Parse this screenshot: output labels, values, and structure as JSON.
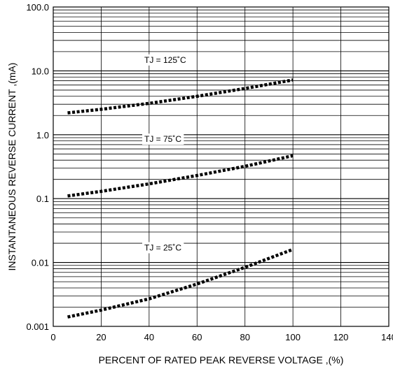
{
  "chart_data": {
    "type": "line",
    "title": "",
    "xlabel": "PERCENT OF RATED PEAK REVERSE VOLTAGE ,(%)",
    "ylabel": "INSTANTANEOUS REVERSE CURRENT ,(mA)",
    "x_scale": "linear",
    "y_scale": "log",
    "xlim": [
      0,
      140
    ],
    "ylim": [
      0.001,
      100
    ],
    "x_ticks": [
      0,
      20,
      40,
      60,
      80,
      100,
      120,
      140
    ],
    "x_tick_labels": [
      "0",
      "20",
      "40",
      "60",
      "80",
      "100",
      "120",
      "140"
    ],
    "y_ticks": [
      0.001,
      0.01,
      0.1,
      1,
      10,
      100
    ],
    "y_tick_labels": [
      "0.001",
      "0.01",
      "0.1",
      "1.0",
      "10.0",
      "100.0"
    ],
    "grid": true,
    "line_style": "dotted",
    "line_color": "#000000",
    "series": [
      {
        "name": "TJ = 125˚C",
        "x": [
          6,
          20,
          40,
          60,
          80,
          100
        ],
        "y": [
          2.2,
          2.5,
          3.1,
          4.0,
          5.3,
          7.2
        ]
      },
      {
        "name": "TJ = 75˚C",
        "x": [
          6,
          20,
          40,
          60,
          80,
          100
        ],
        "y": [
          0.11,
          0.13,
          0.17,
          0.23,
          0.32,
          0.47
        ]
      },
      {
        "name": "TJ = 25˚C",
        "x": [
          6,
          20,
          40,
          60,
          80,
          100
        ],
        "y": [
          0.0014,
          0.0018,
          0.0027,
          0.0046,
          0.0084,
          0.016
        ]
      }
    ]
  }
}
